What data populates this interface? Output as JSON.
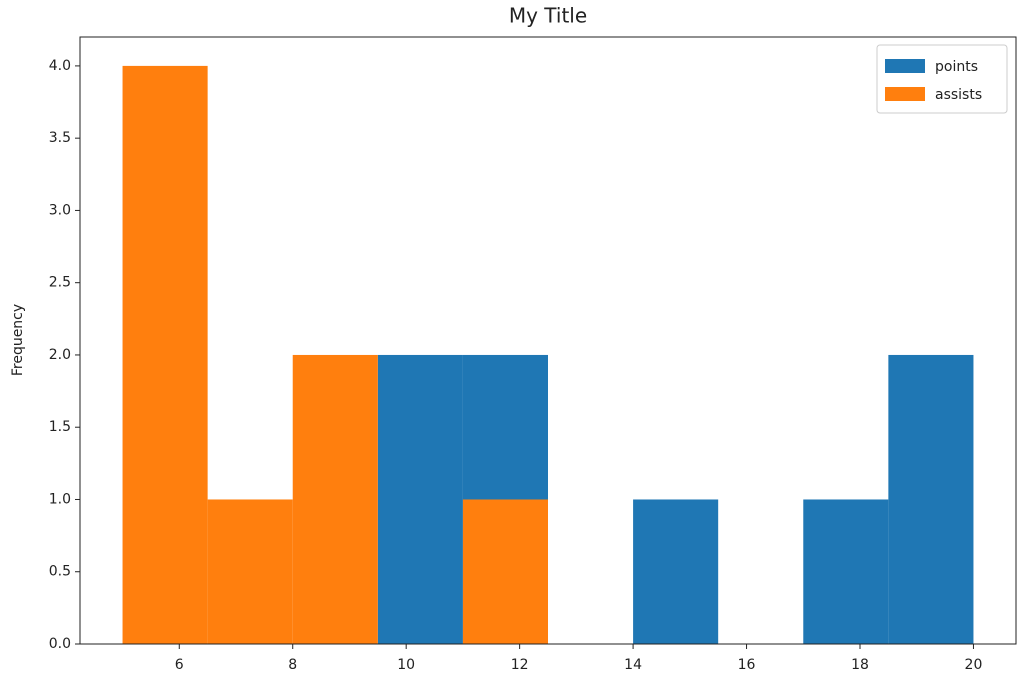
{
  "chart_data": {
    "type": "histogram",
    "title": "My Title",
    "y_label": "Frequency",
    "bins": [
      5,
      6.5,
      8,
      9.5,
      11,
      12.5,
      14,
      15.5,
      17,
      18.5,
      20
    ],
    "series": [
      {
        "name": "points",
        "color": "#1f77b4",
        "values": [
          0,
          0,
          0,
          2,
          2,
          0,
          1,
          0,
          1,
          2
        ]
      },
      {
        "name": "assists",
        "color": "#ff7f0e",
        "values": [
          4,
          1,
          2,
          0,
          1,
          0,
          0,
          0,
          0,
          0
        ]
      }
    ],
    "xlim": [
      4.25,
      20.75
    ],
    "ylim": [
      0,
      4.2
    ],
    "xticks": [
      6,
      8,
      10,
      12,
      14,
      16,
      18,
      20
    ],
    "yticks": [
      {
        "value": 0,
        "label": "0.0"
      },
      {
        "value": 0.5,
        "label": "0.5"
      },
      {
        "value": 1,
        "label": "1.0"
      },
      {
        "value": 1.5,
        "label": "1.5"
      },
      {
        "value": 2,
        "label": "2.0"
      },
      {
        "value": 2.5,
        "label": "2.5"
      },
      {
        "value": 3,
        "label": "3.0"
      },
      {
        "value": 3.5,
        "label": "3.5"
      },
      {
        "value": 4,
        "label": "4.0"
      }
    ],
    "legend": "upper right",
    "grid": false
  }
}
